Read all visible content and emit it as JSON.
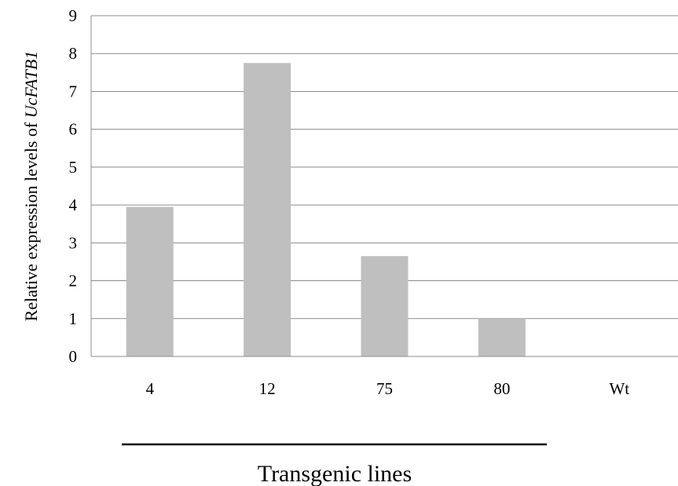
{
  "chart_data": {
    "type": "bar",
    "categories": [
      "4",
      "12",
      "75",
      "80",
      "Wt"
    ],
    "values": [
      3.95,
      7.75,
      2.65,
      1.0,
      0
    ],
    "ylabel_prefix": "Relative expression levels of ",
    "ylabel_gene": "UcFATB1",
    "xlabel": "Transgenic lines",
    "ylim": [
      0,
      9
    ],
    "yticks": [
      0,
      1,
      2,
      3,
      4,
      5,
      6,
      7,
      8,
      9
    ],
    "grid": true,
    "bar_color": "#bfbfbf",
    "grid_color": "#8c8c8c"
  }
}
